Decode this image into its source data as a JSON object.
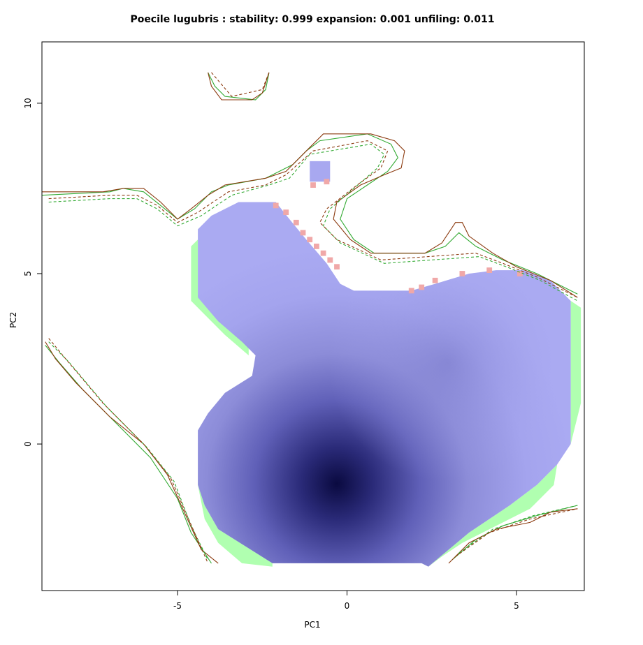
{
  "chart_data": {
    "type": "heatmap",
    "title": "Poecile lugubris : stability: 0.999 expansion: 0.001 unfiling: 0.011",
    "xlabel": "PC1",
    "ylabel": "PC2",
    "xlim": [
      -9.0,
      7.0
    ],
    "ylim": [
      -4.3,
      11.8
    ],
    "xticks": [
      -5,
      0,
      5
    ],
    "yticks": [
      0,
      5,
      10
    ],
    "grid": false,
    "legend": "none",
    "stats": {
      "stability": 0.999,
      "expansion": 0.001,
      "unfilling": 0.011
    },
    "density_peak": {
      "x": -0.3,
      "y": -1.2
    },
    "colors": {
      "stability": "#a8a8f0",
      "stability_peak": "#0a0a40",
      "unfilling": "#b0ffb0",
      "expansion": "#f0a8a8",
      "native_env": "#8b3a0f",
      "invaded_env": "#33aa33",
      "dashed_native": "#8b3a0f",
      "dashed_invaded": "#33aa33"
    },
    "regions": {
      "stability_outline": [
        [
          -3.2,
          7.1
        ],
        [
          -2.1,
          7.1
        ],
        [
          -1.7,
          6.6
        ],
        [
          -1.2,
          6.0
        ],
        [
          -0.6,
          5.3
        ],
        [
          -0.2,
          4.7
        ],
        [
          0.2,
          4.5
        ],
        [
          1.9,
          4.5
        ],
        [
          2.6,
          4.7
        ],
        [
          3.6,
          5.0
        ],
        [
          4.4,
          5.1
        ],
        [
          5.2,
          5.1
        ],
        [
          6.0,
          4.8
        ],
        [
          6.6,
          4.2
        ],
        [
          6.6,
          0.0
        ],
        [
          6.2,
          -0.6
        ],
        [
          5.6,
          -1.2
        ],
        [
          4.8,
          -1.8
        ],
        [
          3.6,
          -2.6
        ],
        [
          2.4,
          -3.6
        ],
        [
          2.2,
          -3.5
        ],
        [
          -2.2,
          -3.5
        ],
        [
          -3.0,
          -3.0
        ],
        [
          -3.8,
          -2.5
        ],
        [
          -4.2,
          -1.8
        ],
        [
          -4.4,
          -1.2
        ],
        [
          -4.4,
          0.4
        ],
        [
          -4.1,
          0.9
        ],
        [
          -3.6,
          1.5
        ],
        [
          -2.8,
          2.0
        ],
        [
          -2.7,
          2.6
        ],
        [
          -3.1,
          3.0
        ],
        [
          -3.8,
          3.6
        ],
        [
          -4.4,
          4.3
        ],
        [
          -4.4,
          6.3
        ],
        [
          -4.0,
          6.7
        ]
      ],
      "unfilling_bands": [
        [
          [
            -4.4,
            6.0
          ],
          [
            -4.6,
            5.8
          ],
          [
            -4.6,
            4.2
          ],
          [
            -4.2,
            3.8
          ],
          [
            -3.6,
            3.2
          ],
          [
            -2.9,
            2.6
          ],
          [
            -2.9,
            3.0
          ],
          [
            -3.5,
            3.5
          ],
          [
            -4.1,
            4.0
          ],
          [
            -4.4,
            4.4
          ]
        ],
        [
          [
            6.6,
            4.2
          ],
          [
            6.9,
            4.0
          ],
          [
            6.9,
            1.2
          ],
          [
            6.7,
            0.4
          ],
          [
            6.6,
            0.0
          ]
        ],
        [
          [
            -4.4,
            -1.2
          ],
          [
            -4.2,
            -2.2
          ],
          [
            -3.8,
            -2.9
          ],
          [
            -3.1,
            -3.5
          ],
          [
            -2.2,
            -3.6
          ],
          [
            -2.2,
            -3.5
          ],
          [
            -3.0,
            -3.0
          ],
          [
            -3.8,
            -2.5
          ],
          [
            -4.2,
            -1.8
          ],
          [
            -4.4,
            -1.2
          ]
        ],
        [
          [
            2.4,
            -3.6
          ],
          [
            3.6,
            -2.6
          ],
          [
            4.8,
            -1.8
          ],
          [
            5.6,
            -1.2
          ],
          [
            6.2,
            -0.6
          ],
          [
            6.1,
            -1.2
          ],
          [
            5.4,
            -1.9
          ],
          [
            4.4,
            -2.4
          ],
          [
            3.4,
            -2.9
          ],
          [
            2.8,
            -3.3
          ]
        ]
      ],
      "island": [
        [
          -1.1,
          8.3
        ],
        [
          -0.5,
          8.3
        ],
        [
          -0.5,
          7.7
        ],
        [
          -1.1,
          7.7
        ]
      ],
      "expansion_cells": [
        [
          -2.1,
          7.0
        ],
        [
          -1.8,
          6.8
        ],
        [
          -1.5,
          6.5
        ],
        [
          -1.3,
          6.2
        ],
        [
          -1.1,
          6.0
        ],
        [
          -0.9,
          5.8
        ],
        [
          -0.7,
          5.6
        ],
        [
          -0.5,
          5.4
        ],
        [
          -0.3,
          5.2
        ],
        [
          1.9,
          4.5
        ],
        [
          2.2,
          4.6
        ],
        [
          2.6,
          4.8
        ],
        [
          3.4,
          5.0
        ],
        [
          4.2,
          5.1
        ],
        [
          5.1,
          5.0
        ],
        [
          -1.0,
          7.6
        ],
        [
          -0.6,
          7.7
        ]
      ]
    },
    "contours": {
      "native_solid": [
        [
          [
            -9.0,
            7.4
          ],
          [
            -7.2,
            7.4
          ],
          [
            -6.6,
            7.5
          ],
          [
            -6.0,
            7.5
          ],
          [
            -5.5,
            7.1
          ],
          [
            -5.0,
            6.6
          ],
          [
            -4.6,
            6.9
          ],
          [
            -4.1,
            7.3
          ],
          [
            -3.6,
            7.6
          ],
          [
            -2.4,
            7.8
          ],
          [
            -1.8,
            8.0
          ],
          [
            -1.2,
            8.6
          ],
          [
            -0.7,
            9.1
          ],
          [
            0.7,
            9.1
          ],
          [
            1.4,
            8.9
          ],
          [
            1.7,
            8.6
          ],
          [
            1.6,
            8.1
          ],
          [
            1.1,
            7.9
          ],
          [
            0.4,
            7.6
          ],
          [
            -0.3,
            7.1
          ],
          [
            -0.4,
            6.6
          ],
          [
            0.1,
            6.0
          ],
          [
            0.7,
            5.6
          ],
          [
            2.3,
            5.6
          ],
          [
            2.8,
            5.9
          ],
          [
            3.2,
            6.5
          ],
          [
            3.4,
            6.5
          ],
          [
            3.6,
            6.1
          ],
          [
            4.3,
            5.6
          ],
          [
            5.0,
            5.2
          ],
          [
            6.0,
            4.8
          ],
          [
            6.8,
            4.3
          ]
        ],
        [
          [
            -4.1,
            10.9
          ],
          [
            -4.0,
            10.5
          ],
          [
            -3.7,
            10.1
          ],
          [
            -2.8,
            10.1
          ],
          [
            -2.5,
            10.3
          ],
          [
            -2.3,
            10.9
          ]
        ],
        [
          [
            -8.9,
            3.0
          ],
          [
            -8.6,
            2.5
          ],
          [
            -8.0,
            1.8
          ],
          [
            -7.0,
            0.8
          ],
          [
            -6.0,
            0.0
          ],
          [
            -5.3,
            -0.9
          ],
          [
            -4.8,
            -2.0
          ],
          [
            -4.3,
            -3.1
          ],
          [
            -3.8,
            -3.5
          ]
        ],
        [
          [
            3.0,
            -3.5
          ],
          [
            3.6,
            -2.9
          ],
          [
            4.4,
            -2.5
          ],
          [
            5.4,
            -2.3
          ],
          [
            6.0,
            -2.0
          ],
          [
            6.8,
            -1.9
          ]
        ]
      ],
      "native_dashed": [
        [
          [
            -8.8,
            7.2
          ],
          [
            -7.0,
            7.3
          ],
          [
            -6.2,
            7.3
          ],
          [
            -5.6,
            7.0
          ],
          [
            -5.0,
            6.5
          ],
          [
            -4.4,
            6.8
          ],
          [
            -3.5,
            7.4
          ],
          [
            -2.4,
            7.6
          ],
          [
            -1.8,
            7.9
          ],
          [
            -1.0,
            8.6
          ],
          [
            0.6,
            8.9
          ],
          [
            1.2,
            8.6
          ],
          [
            1.0,
            8.1
          ],
          [
            0.3,
            7.6
          ],
          [
            -0.6,
            6.9
          ],
          [
            -0.8,
            6.5
          ],
          [
            -0.3,
            6.0
          ],
          [
            1.0,
            5.4
          ],
          [
            2.4,
            5.5
          ],
          [
            3.8,
            5.6
          ],
          [
            4.6,
            5.3
          ],
          [
            5.6,
            4.9
          ],
          [
            6.8,
            4.3
          ]
        ],
        [
          [
            -4.0,
            10.9
          ],
          [
            -3.4,
            10.2
          ],
          [
            -2.5,
            10.4
          ],
          [
            -2.3,
            10.9
          ]
        ],
        [
          [
            -8.8,
            3.1
          ],
          [
            -8.3,
            2.5
          ],
          [
            -7.2,
            1.2
          ],
          [
            -6.0,
            0.0
          ],
          [
            -5.2,
            -1.0
          ],
          [
            -4.5,
            -2.6
          ],
          [
            -4.1,
            -3.5
          ]
        ],
        [
          [
            3.2,
            -3.3
          ],
          [
            4.2,
            -2.6
          ],
          [
            5.4,
            -2.2
          ],
          [
            6.8,
            -1.9
          ]
        ]
      ],
      "invaded_solid": [
        [
          [
            -9.0,
            7.3
          ],
          [
            -7.0,
            7.4
          ],
          [
            -6.6,
            7.5
          ],
          [
            -6.0,
            7.4
          ],
          [
            -5.5,
            7.0
          ],
          [
            -5.0,
            6.6
          ],
          [
            -4.5,
            6.9
          ],
          [
            -4.0,
            7.4
          ],
          [
            -3.5,
            7.6
          ],
          [
            -2.4,
            7.8
          ],
          [
            -1.6,
            8.2
          ],
          [
            -1.2,
            8.6
          ],
          [
            -0.8,
            8.9
          ],
          [
            0.6,
            9.1
          ],
          [
            1.3,
            8.8
          ],
          [
            1.5,
            8.4
          ],
          [
            1.2,
            8.0
          ],
          [
            0.6,
            7.6
          ],
          [
            0.0,
            7.2
          ],
          [
            -0.2,
            6.6
          ],
          [
            0.2,
            6.0
          ],
          [
            0.8,
            5.6
          ],
          [
            2.3,
            5.6
          ],
          [
            2.9,
            5.8
          ],
          [
            3.3,
            6.2
          ],
          [
            3.8,
            5.8
          ],
          [
            4.6,
            5.4
          ],
          [
            5.6,
            5.0
          ],
          [
            6.8,
            4.4
          ]
        ],
        [
          [
            -4.1,
            10.9
          ],
          [
            -3.9,
            10.5
          ],
          [
            -3.6,
            10.2
          ],
          [
            -2.7,
            10.1
          ],
          [
            -2.4,
            10.4
          ],
          [
            -2.3,
            10.9
          ]
        ],
        [
          [
            -8.9,
            2.9
          ],
          [
            -8.5,
            2.4
          ],
          [
            -7.8,
            1.6
          ],
          [
            -6.6,
            0.4
          ],
          [
            -5.8,
            -0.4
          ],
          [
            -5.0,
            -1.6
          ],
          [
            -4.6,
            -2.6
          ],
          [
            -4.0,
            -3.5
          ]
        ],
        [
          [
            3.1,
            -3.4
          ],
          [
            3.8,
            -2.8
          ],
          [
            4.6,
            -2.4
          ],
          [
            5.6,
            -2.1
          ],
          [
            6.8,
            -1.8
          ]
        ]
      ],
      "invaded_dashed": [
        [
          [
            -8.8,
            7.1
          ],
          [
            -7.0,
            7.2
          ],
          [
            -6.2,
            7.2
          ],
          [
            -5.6,
            6.9
          ],
          [
            -5.0,
            6.4
          ],
          [
            -4.3,
            6.7
          ],
          [
            -3.4,
            7.3
          ],
          [
            -2.3,
            7.6
          ],
          [
            -1.7,
            7.8
          ],
          [
            -1.1,
            8.5
          ],
          [
            0.7,
            8.8
          ],
          [
            1.1,
            8.5
          ],
          [
            0.9,
            8.1
          ],
          [
            0.2,
            7.5
          ],
          [
            -0.5,
            6.9
          ],
          [
            -0.7,
            6.4
          ],
          [
            -0.2,
            5.9
          ],
          [
            1.1,
            5.3
          ],
          [
            2.5,
            5.4
          ],
          [
            3.9,
            5.5
          ],
          [
            4.7,
            5.2
          ],
          [
            5.7,
            4.8
          ],
          [
            6.8,
            4.2
          ]
        ],
        [
          [
            -8.8,
            3.0
          ],
          [
            -8.2,
            2.4
          ],
          [
            -7.1,
            1.1
          ],
          [
            -5.9,
            -0.1
          ],
          [
            -5.1,
            -1.1
          ],
          [
            -4.6,
            -2.4
          ],
          [
            -4.1,
            -3.4
          ]
        ],
        [
          [
            3.3,
            -3.2
          ],
          [
            4.3,
            -2.5
          ],
          [
            5.5,
            -2.1
          ],
          [
            6.8,
            -1.8
          ]
        ]
      ]
    }
  }
}
